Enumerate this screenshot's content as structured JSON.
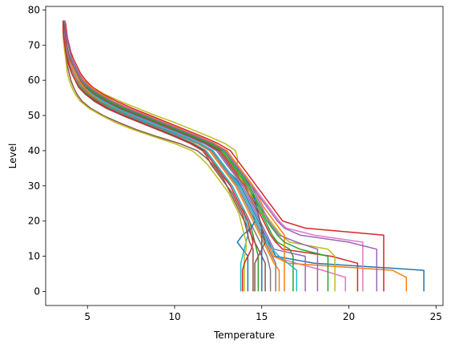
{
  "chart_data": {
    "type": "line",
    "title": "",
    "xlabel": "Temperature",
    "ylabel": "Level",
    "xlim": [
      2.6,
      25.4
    ],
    "ylim": [
      -4,
      81
    ],
    "xticks": [
      5,
      10,
      15,
      20,
      25
    ],
    "yticks": [
      0,
      10,
      20,
      30,
      40,
      50,
      60,
      70,
      80
    ],
    "grid": false,
    "legend": "none",
    "levels": [
      0,
      2,
      4,
      6,
      8,
      10,
      12,
      14,
      16,
      18,
      20,
      22,
      24,
      26,
      28,
      30,
      32,
      34,
      36,
      38,
      40,
      42,
      44,
      46,
      48,
      50,
      52,
      54,
      56,
      58,
      60,
      62,
      64,
      66,
      68,
      70,
      72,
      74,
      76,
      77
    ],
    "colors": [
      "#1f77b4",
      "#ff7f0e",
      "#2ca02c",
      "#d62728",
      "#9467bd",
      "#8c564b",
      "#e377c2",
      "#7f7f7f",
      "#bcbd22",
      "#17becf"
    ],
    "series": [
      {
        "values": [
          24.3,
          24.3,
          24.3,
          24.3,
          18.0,
          15.8,
          15.6,
          15.4,
          15.2,
          15.0,
          14.8,
          14.6,
          14.4,
          14.2,
          14.0,
          13.8,
          13.5,
          13.1,
          12.8,
          12.5,
          12.1,
          11.4,
          10.5,
          9.6,
          8.6,
          7.6,
          6.7,
          5.9,
          5.3,
          4.9,
          4.6,
          4.4,
          4.2,
          4.0,
          3.9,
          3.8,
          3.75,
          3.7,
          3.65,
          3.6
        ]
      },
      {
        "values": [
          16.0,
          16.0,
          16.0,
          16.0,
          15.7,
          15.5,
          15.3,
          15.1,
          14.9,
          14.7,
          14.5,
          14.3,
          14.1,
          13.9,
          13.7,
          13.5,
          13.2,
          12.9,
          12.6,
          12.3,
          12.0,
          11.3,
          10.4,
          9.4,
          8.4,
          7.4,
          6.5,
          5.7,
          5.1,
          4.7,
          4.4,
          4.2,
          4.0,
          3.9,
          3.8,
          3.7,
          3.65,
          3.6,
          3.6,
          3.6
        ]
      },
      {
        "values": [
          14.8,
          14.8,
          14.8,
          14.8,
          14.8,
          14.8,
          14.7,
          14.6,
          14.5,
          14.4,
          14.3,
          14.1,
          13.9,
          13.7,
          13.5,
          13.3,
          13.0,
          12.7,
          12.4,
          12.1,
          11.8,
          11.1,
          10.2,
          9.3,
          8.3,
          7.3,
          6.4,
          5.6,
          5.0,
          4.6,
          4.3,
          4.1,
          3.95,
          3.85,
          3.75,
          3.7,
          3.65,
          3.6,
          3.6,
          3.6
        ]
      },
      {
        "values": [
          20.5,
          20.5,
          20.5,
          20.5,
          20.5,
          19.0,
          16.2,
          15.8,
          15.5,
          15.3,
          15.1,
          14.9,
          14.7,
          14.5,
          14.3,
          14.1,
          13.8,
          13.5,
          13.2,
          12.9,
          12.6,
          11.9,
          11.0,
          10.0,
          9.0,
          8.0,
          7.0,
          6.2,
          5.5,
          5.0,
          4.7,
          4.5,
          4.3,
          4.1,
          4.0,
          3.9,
          3.8,
          3.75,
          3.7,
          3.7
        ]
      },
      {
        "values": [
          17.5,
          17.5,
          17.5,
          17.5,
          17.5,
          17.5,
          15.7,
          15.5,
          15.3,
          15.1,
          14.9,
          14.7,
          14.5,
          14.3,
          14.1,
          13.9,
          13.6,
          13.3,
          13.0,
          12.7,
          12.4,
          11.7,
          10.8,
          9.8,
          8.8,
          7.8,
          6.8,
          6.0,
          5.3,
          4.8,
          4.5,
          4.3,
          4.1,
          4.0,
          3.9,
          3.8,
          3.75,
          3.7,
          3.65,
          3.6
        ]
      },
      {
        "values": [
          15.2,
          15.2,
          15.2,
          15.2,
          15.2,
          15.0,
          14.8,
          14.6,
          14.4,
          14.2,
          14.0,
          13.8,
          13.6,
          13.4,
          13.2,
          13.0,
          12.8,
          12.5,
          12.2,
          11.8,
          11.3,
          10.3,
          9.0,
          7.8,
          6.8,
          5.9,
          5.2,
          4.7,
          4.4,
          4.2,
          4.05,
          3.95,
          3.85,
          3.8,
          3.75,
          3.7,
          3.65,
          3.6,
          3.6,
          3.6
        ]
      },
      {
        "values": [
          19.8,
          19.8,
          19.8,
          18.5,
          17.0,
          15.6,
          15.4,
          15.2,
          15.0,
          14.8,
          14.6,
          14.4,
          14.2,
          14.0,
          13.8,
          13.6,
          13.3,
          13.0,
          12.7,
          12.4,
          12.1,
          11.4,
          10.5,
          9.5,
          8.5,
          7.5,
          6.6,
          5.8,
          5.2,
          4.8,
          4.5,
          4.3,
          4.1,
          3.95,
          3.85,
          3.75,
          3.7,
          3.65,
          3.6,
          3.6
        ]
      },
      {
        "values": [
          15.5,
          15.5,
          15.5,
          15.5,
          15.4,
          15.3,
          15.1,
          14.9,
          14.7,
          14.5,
          14.3,
          14.1,
          13.9,
          13.7,
          13.5,
          13.3,
          13.0,
          12.7,
          12.4,
          12.1,
          11.8,
          11.1,
          10.2,
          9.2,
          8.2,
          7.2,
          6.3,
          5.5,
          4.9,
          4.5,
          4.3,
          4.1,
          3.95,
          3.85,
          3.75,
          3.7,
          3.65,
          3.6,
          3.6,
          3.6
        ]
      },
      {
        "values": [
          19.2,
          19.2,
          19.2,
          19.2,
          19.2,
          19.2,
          18.8,
          16.6,
          16.1,
          15.8,
          15.5,
          15.2,
          14.9,
          14.6,
          14.3,
          14.0,
          13.8,
          13.6,
          13.6,
          13.6,
          13.5,
          12.9,
          12.0,
          11.0,
          10.0,
          8.9,
          7.9,
          6.9,
          6.0,
          5.3,
          4.8,
          4.5,
          4.3,
          4.1,
          4.0,
          3.9,
          3.8,
          3.75,
          3.7,
          3.7
        ]
      },
      {
        "values": [
          13.8,
          13.8,
          13.8,
          13.8,
          13.8,
          13.9,
          14.0,
          14.1,
          14.2,
          14.2,
          14.1,
          14.0,
          13.9,
          13.7,
          13.5,
          13.3,
          13.0,
          12.7,
          12.4,
          12.1,
          11.8,
          11.1,
          10.2,
          9.2,
          8.2,
          7.2,
          6.3,
          5.5,
          4.9,
          4.5,
          4.3,
          4.1,
          3.95,
          3.85,
          3.75,
          3.7,
          3.65,
          3.6,
          3.6,
          3.6
        ]
      },
      {
        "values": [
          14.2,
          14.2,
          14.2,
          14.2,
          14.2,
          14.2,
          13.9,
          13.6,
          13.9,
          14.4,
          14.6,
          14.5,
          14.3,
          14.1,
          13.9,
          13.7,
          13.4,
          13.1,
          12.8,
          12.5,
          12.2,
          11.5,
          10.6,
          9.6,
          8.6,
          7.6,
          6.7,
          5.9,
          5.2,
          4.8,
          4.5,
          4.3,
          4.1,
          4.0,
          3.9,
          3.8,
          3.75,
          3.7,
          3.65,
          3.6
        ]
      },
      {
        "values": [
          23.3,
          23.3,
          23.3,
          22.5,
          16.5,
          15.7,
          15.5,
          15.3,
          15.1,
          14.9,
          14.7,
          14.5,
          14.3,
          14.1,
          13.9,
          13.7,
          13.4,
          13.1,
          12.8,
          12.5,
          12.2,
          11.5,
          10.6,
          9.6,
          8.6,
          7.6,
          6.6,
          5.8,
          5.2,
          4.8,
          4.5,
          4.3,
          4.1,
          4.0,
          3.9,
          3.8,
          3.75,
          3.7,
          3.65,
          3.6
        ]
      },
      {
        "values": [
          16.8,
          16.8,
          16.8,
          16.8,
          16.8,
          16.8,
          16.6,
          15.9,
          15.6,
          15.4,
          15.2,
          15.0,
          14.8,
          14.6,
          14.4,
          14.2,
          13.9,
          13.6,
          13.3,
          13.0,
          12.7,
          12.0,
          11.1,
          10.1,
          9.1,
          8.1,
          7.1,
          6.2,
          5.5,
          5.0,
          4.7,
          4.5,
          4.3,
          4.1,
          4.0,
          3.9,
          3.8,
          3.75,
          3.7,
          3.7
        ]
      },
      {
        "values": [
          22.0,
          22.0,
          22.0,
          22.0,
          22.0,
          22.0,
          22.0,
          22.0,
          22.0,
          17.5,
          16.2,
          15.9,
          15.6,
          15.3,
          15.0,
          14.7,
          14.4,
          14.1,
          13.8,
          13.5,
          13.2,
          12.5,
          11.6,
          10.6,
          9.6,
          8.6,
          7.6,
          6.7,
          5.9,
          5.3,
          4.9,
          4.6,
          4.4,
          4.2,
          4.05,
          3.95,
          3.85,
          3.8,
          3.75,
          3.7
        ]
      },
      {
        "values": [
          18.2,
          18.2,
          18.2,
          18.2,
          18.2,
          18.2,
          18.2,
          17.0,
          16.0,
          15.7,
          15.4,
          15.2,
          15.0,
          14.8,
          14.6,
          14.4,
          14.1,
          13.8,
          13.5,
          13.2,
          12.9,
          12.2,
          11.3,
          10.3,
          9.3,
          8.3,
          7.3,
          6.4,
          5.7,
          5.1,
          4.7,
          4.5,
          4.3,
          4.1,
          4.0,
          3.9,
          3.8,
          3.75,
          3.7,
          3.7
        ]
      },
      {
        "values": [
          14.5,
          14.5,
          14.5,
          14.5,
          14.5,
          14.5,
          14.5,
          14.3,
          14.2,
          14.1,
          14.0,
          13.9,
          13.7,
          13.5,
          13.3,
          13.0,
          12.7,
          12.4,
          12.1,
          11.9,
          11.6,
          10.9,
          10.0,
          9.0,
          8.0,
          7.0,
          6.1,
          5.4,
          4.9,
          4.5,
          4.3,
          4.1,
          3.95,
          3.85,
          3.75,
          3.7,
          3.65,
          3.6,
          3.6,
          3.6
        ]
      },
      {
        "values": [
          20.8,
          20.8,
          20.8,
          20.8,
          20.8,
          20.8,
          20.8,
          20.8,
          18.0,
          16.4,
          16.0,
          15.7,
          15.4,
          15.1,
          14.8,
          14.5,
          14.2,
          13.9,
          13.6,
          13.3,
          13.0,
          12.3,
          11.4,
          10.4,
          9.4,
          8.4,
          7.4,
          6.5,
          5.8,
          5.2,
          4.8,
          4.5,
          4.3,
          4.1,
          4.0,
          3.9,
          3.8,
          3.75,
          3.7,
          3.7
        ]
      },
      {
        "values": [
          15.8,
          15.8,
          15.8,
          15.8,
          15.8,
          15.6,
          15.4,
          15.2,
          15.0,
          14.8,
          14.6,
          14.4,
          14.2,
          14.0,
          13.8,
          13.6,
          13.3,
          13.0,
          12.7,
          12.4,
          12.1,
          11.4,
          10.4,
          9.4,
          8.4,
          7.4,
          6.5,
          5.7,
          5.1,
          4.7,
          4.4,
          4.2,
          4.0,
          3.9,
          3.8,
          3.7,
          3.65,
          3.6,
          3.6,
          3.6
        ]
      },
      {
        "values": [
          14.0,
          14.0,
          14.0,
          14.0,
          14.0,
          14.0,
          14.1,
          14.1,
          14.0,
          13.9,
          13.8,
          13.7,
          13.5,
          13.3,
          13.1,
          12.8,
          12.5,
          12.2,
          11.9,
          11.5,
          11.0,
          10.0,
          8.8,
          7.6,
          6.6,
          5.8,
          5.1,
          4.6,
          4.3,
          4.1,
          3.95,
          3.85,
          3.8,
          3.75,
          3.7,
          3.65,
          3.6,
          3.6,
          3.6,
          3.6
        ]
      },
      {
        "values": [
          17.0,
          17.0,
          17.0,
          17.0,
          16.5,
          16.0,
          15.6,
          15.3,
          15.1,
          14.9,
          14.7,
          14.5,
          14.3,
          14.1,
          13.9,
          13.7,
          13.4,
          13.1,
          12.8,
          12.5,
          12.2,
          11.5,
          10.6,
          9.6,
          8.6,
          7.6,
          6.7,
          5.9,
          5.3,
          4.9,
          4.6,
          4.4,
          4.2,
          4.0,
          3.9,
          3.8,
          3.75,
          3.7,
          3.65,
          3.6
        ]
      },
      {
        "values": [
          15.0,
          15.0,
          15.0,
          15.0,
          15.0,
          15.0,
          15.0,
          15.0,
          15.0,
          15.0,
          14.9,
          14.8,
          14.7,
          14.6,
          14.5,
          14.3,
          14.1,
          13.8,
          13.5,
          13.2,
          12.9,
          12.2,
          11.3,
          10.3,
          9.3,
          8.3,
          7.3,
          6.4,
          5.7,
          5.1,
          4.7,
          4.5,
          4.3,
          4.1,
          4.0,
          3.9,
          3.8,
          3.75,
          3.7,
          3.7
        ]
      },
      {
        "values": [
          16.3,
          16.3,
          16.3,
          16.3,
          16.3,
          16.3,
          16.3,
          16.3,
          16.3,
          16.0,
          15.7,
          15.4,
          15.1,
          14.9,
          14.7,
          14.5,
          14.2,
          13.9,
          13.6,
          13.3,
          13.0,
          12.3,
          11.4,
          10.4,
          9.4,
          8.4,
          7.4,
          6.5,
          5.8,
          5.2,
          4.8,
          4.5,
          4.3,
          4.1,
          4.0,
          3.9,
          3.8,
          3.75,
          3.7,
          3.7
        ]
      },
      {
        "values": [
          18.8,
          18.8,
          18.8,
          18.8,
          18.8,
          18.8,
          17.2,
          16.3,
          15.9,
          15.6,
          15.3,
          15.1,
          14.9,
          14.7,
          14.5,
          14.3,
          14.0,
          13.7,
          13.4,
          13.1,
          12.8,
          12.1,
          11.2,
          10.2,
          9.2,
          8.2,
          7.2,
          6.3,
          5.6,
          5.1,
          4.7,
          4.5,
          4.3,
          4.1,
          4.0,
          3.9,
          3.8,
          3.75,
          3.7,
          3.7
        ]
      },
      {
        "values": [
          13.9,
          13.9,
          13.9,
          13.9,
          14.0,
          14.2,
          14.4,
          14.5,
          14.4,
          14.3,
          14.2,
          14.0,
          13.8,
          13.6,
          13.4,
          13.2,
          12.9,
          12.6,
          12.3,
          12.0,
          11.7,
          11.0,
          10.1,
          9.1,
          8.1,
          7.1,
          6.2,
          5.5,
          4.9,
          4.5,
          4.3,
          4.1,
          3.95,
          3.85,
          3.75,
          3.7,
          3.65,
          3.6,
          3.6,
          3.6
        ]
      },
      {
        "values": [
          21.6,
          21.6,
          21.6,
          21.6,
          21.6,
          21.6,
          21.6,
          20.0,
          17.2,
          16.3,
          15.9,
          15.6,
          15.3,
          15.0,
          14.7,
          14.4,
          14.1,
          13.8,
          13.5,
          13.2,
          12.9,
          12.2,
          11.3,
          10.3,
          9.3,
          8.3,
          7.3,
          6.4,
          5.7,
          5.1,
          4.7,
          4.5,
          4.3,
          4.1,
          4.0,
          3.9,
          3.8,
          3.75,
          3.7,
          3.7
        ]
      },
      {
        "values": [
          14.6,
          14.6,
          14.6,
          14.6,
          14.6,
          14.8,
          15.0,
          15.2,
          15.1,
          15.0,
          14.9,
          14.8,
          14.6,
          14.4,
          14.2,
          14.0,
          13.7,
          13.4,
          13.1,
          12.8,
          12.5,
          11.8,
          10.9,
          9.9,
          8.9,
          7.9,
          6.9,
          6.1,
          5.4,
          4.9,
          4.6,
          4.4,
          4.2,
          4.0,
          3.9,
          3.8,
          3.75,
          3.7,
          3.65,
          3.6
        ]
      }
    ]
  }
}
